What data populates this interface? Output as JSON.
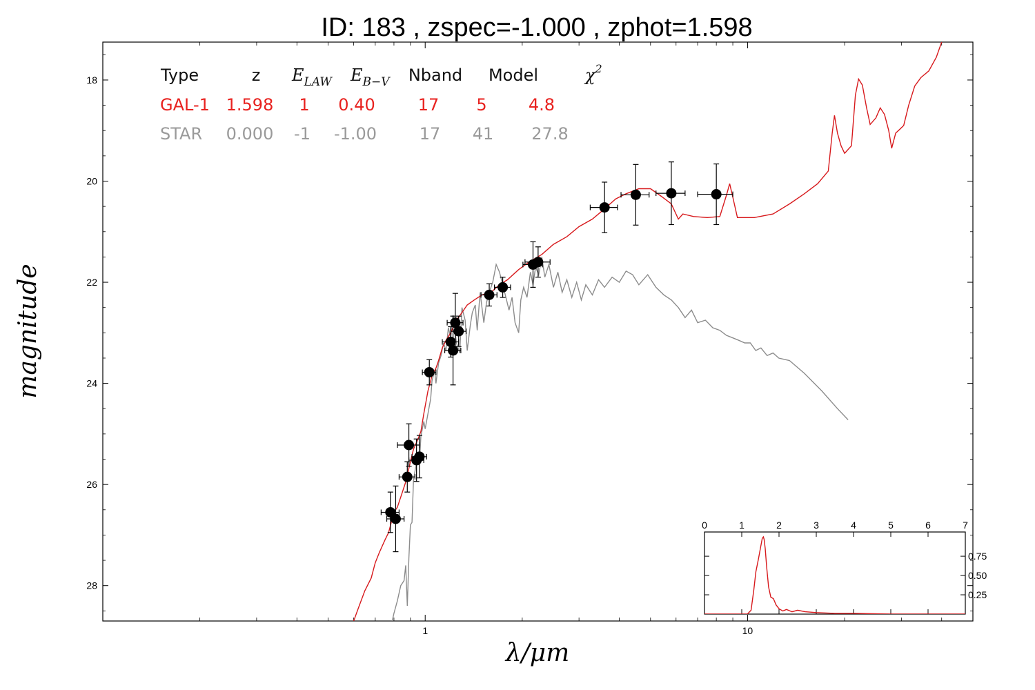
{
  "title": "ID:  183   , zspec=-1.000 , zphot=1.598",
  "colors": {
    "galaxy": "#d7191c",
    "star": "#8c8c8c",
    "points": "#000000",
    "table_galaxy": "#e8221f",
    "table_star": "#9a9a9a"
  },
  "table": {
    "headers": [
      "Type",
      "z",
      "E_LAW",
      "E_B-V",
      "Nband",
      "Model",
      "χ²"
    ],
    "header_display": {
      "type": "Type",
      "z": "z",
      "elaw_main": "E",
      "elaw_sub": "LAW",
      "ebv_main": "E",
      "ebv_sub": "B−V",
      "nband": "Nband",
      "model": "Model",
      "chi_main": "χ",
      "chi_sup": "2"
    },
    "rows": [
      {
        "type": "GAL-1",
        "z": "1.598",
        "elaw": "1",
        "ebv": "0.40",
        "nband": "17",
        "model": "5",
        "chi2": "4.8"
      },
      {
        "type": "STAR",
        "z": "0.000",
        "elaw": "-1",
        "ebv": "-1.00",
        "nband": "17",
        "model": "41",
        "chi2": "27.8"
      }
    ]
  },
  "chart_data": [
    {
      "type": "scatter",
      "xlabel": "λ/μm",
      "ylabel": "magnitude",
      "xscale": "log",
      "xlim": [
        0.1,
        50
      ],
      "ylim": [
        28.7,
        17.25
      ],
      "y_inverted": true,
      "xticks": [
        1,
        10
      ],
      "xtick_labels": [
        "1",
        "10"
      ],
      "yticks": [
        18,
        20,
        22,
        24,
        26,
        28
      ],
      "ytick_labels": [
        "18",
        "20",
        "22",
        "24",
        "26",
        "28"
      ],
      "observed": {
        "points": [
          {
            "x": 0.78,
            "y": 26.55,
            "xerr": 0.05,
            "yerr": 0.4
          },
          {
            "x": 0.81,
            "y": 26.68,
            "xerr": 0.05,
            "yerr": 0.65
          },
          {
            "x": 0.88,
            "y": 25.85,
            "xerr": 0.05,
            "yerr": 0.3
          },
          {
            "x": 0.89,
            "y": 25.22,
            "xerr": 0.07,
            "yerr": 0.42
          },
          {
            "x": 0.94,
            "y": 25.52,
            "xerr": 0.05,
            "yerr": 0.42
          },
          {
            "x": 0.96,
            "y": 25.45,
            "xerr": 0.05,
            "yerr": 0.42
          },
          {
            "x": 1.03,
            "y": 23.78,
            "xerr": 0.05,
            "yerr": 0.25
          },
          {
            "x": 1.2,
            "y": 23.18,
            "xerr": 0.07,
            "yerr": 0.3
          },
          {
            "x": 1.22,
            "y": 23.35,
            "xerr": 0.07,
            "yerr": 0.68
          },
          {
            "x": 1.24,
            "y": 22.8,
            "xerr": 0.07,
            "yerr": 0.58
          },
          {
            "x": 1.27,
            "y": 22.97,
            "xerr": 0.07,
            "yerr": 0.3
          },
          {
            "x": 1.58,
            "y": 22.25,
            "xerr": 0.09,
            "yerr": 0.22
          },
          {
            "x": 1.74,
            "y": 22.1,
            "xerr": 0.1,
            "yerr": 0.2
          },
          {
            "x": 2.16,
            "y": 21.65,
            "xerr": 0.15,
            "yerr": 0.45
          },
          {
            "x": 2.24,
            "y": 21.6,
            "xerr": 0.2,
            "yerr": 0.3
          },
          {
            "x": 3.6,
            "y": 20.52,
            "xerr": 0.35,
            "yerr": 0.5
          },
          {
            "x": 4.5,
            "y": 20.27,
            "xerr": 0.45,
            "yerr": 0.6
          },
          {
            "x": 5.8,
            "y": 20.24,
            "xerr": 0.6,
            "yerr": 0.62
          },
          {
            "x": 8.0,
            "y": 20.26,
            "xerr": 1.0,
            "yerr": 0.6
          }
        ]
      },
      "series": [
        {
          "name": "GAL-1",
          "color": "#d7191c",
          "points": [
            [
              0.6,
              28.7
            ],
            [
              0.62,
              28.45
            ],
            [
              0.65,
              28.1
            ],
            [
              0.68,
              27.85
            ],
            [
              0.7,
              27.55
            ],
            [
              0.72,
              27.35
            ],
            [
              0.75,
              27.1
            ],
            [
              0.77,
              26.95
            ],
            [
              0.8,
              26.55
            ],
            [
              0.82,
              26.45
            ],
            [
              0.85,
              26.15
            ],
            [
              0.87,
              25.95
            ],
            [
              0.9,
              25.55
            ],
            [
              0.92,
              25.3
            ],
            [
              0.95,
              25.1
            ],
            [
              0.97,
              24.95
            ],
            [
              0.99,
              24.6
            ],
            [
              1.02,
              24.15
            ],
            [
              1.05,
              23.85
            ],
            [
              1.08,
              23.7
            ],
            [
              1.1,
              23.55
            ],
            [
              1.13,
              23.3
            ],
            [
              1.16,
              23.15
            ],
            [
              1.2,
              23.0
            ],
            [
              1.25,
              22.75
            ],
            [
              1.3,
              22.6
            ],
            [
              1.35,
              22.45
            ],
            [
              1.42,
              22.35
            ],
            [
              1.5,
              22.25
            ],
            [
              1.6,
              22.2
            ],
            [
              1.7,
              22.05
            ],
            [
              1.8,
              21.95
            ],
            [
              1.95,
              21.75
            ],
            [
              2.1,
              21.6
            ],
            [
              2.3,
              21.45
            ],
            [
              2.5,
              21.25
            ],
            [
              2.75,
              21.1
            ],
            [
              3.0,
              20.9
            ],
            [
              3.3,
              20.75
            ],
            [
              3.6,
              20.55
            ],
            [
              3.9,
              20.35
            ],
            [
              4.2,
              20.25
            ],
            [
              4.6,
              20.15
            ],
            [
              5.0,
              20.15
            ],
            [
              5.4,
              20.3
            ],
            [
              5.8,
              20.45
            ],
            [
              6.1,
              20.75
            ],
            [
              6.3,
              20.65
            ],
            [
              6.8,
              20.7
            ],
            [
              7.5,
              20.72
            ],
            [
              8.2,
              20.7
            ],
            [
              8.6,
              20.28
            ],
            [
              8.8,
              20.05
            ],
            [
              9.0,
              20.32
            ],
            [
              9.3,
              20.72
            ],
            [
              10.5,
              20.72
            ],
            [
              12.0,
              20.65
            ],
            [
              13.5,
              20.45
            ],
            [
              15.0,
              20.25
            ],
            [
              16.5,
              20.05
            ],
            [
              17.8,
              19.8
            ],
            [
              18.3,
              19.05
            ],
            [
              18.6,
              18.7
            ],
            [
              19.0,
              19.05
            ],
            [
              19.5,
              19.3
            ],
            [
              20.0,
              19.45
            ],
            [
              21.0,
              19.3
            ],
            [
              21.6,
              18.3
            ],
            [
              22.1,
              17.98
            ],
            [
              22.7,
              18.1
            ],
            [
              23.4,
              18.55
            ],
            [
              24.0,
              18.88
            ],
            [
              25.0,
              18.75
            ],
            [
              25.8,
              18.55
            ],
            [
              26.6,
              18.68
            ],
            [
              27.4,
              19.0
            ],
            [
              28.0,
              19.35
            ],
            [
              28.8,
              19.05
            ],
            [
              29.6,
              18.98
            ],
            [
              30.5,
              18.9
            ],
            [
              31.6,
              18.5
            ],
            [
              33.0,
              18.12
            ],
            [
              34.5,
              17.95
            ],
            [
              36.5,
              17.82
            ],
            [
              38.5,
              17.55
            ],
            [
              40.0,
              17.25
            ]
          ]
        },
        {
          "name": "STAR",
          "color": "#8c8c8c",
          "points": [
            [
              0.79,
              28.7
            ],
            [
              0.8,
              28.55
            ],
            [
              0.82,
              28.3
            ],
            [
              0.84,
              28.0
            ],
            [
              0.86,
              27.9
            ],
            [
              0.87,
              27.6
            ],
            [
              0.88,
              28.4
            ],
            [
              0.89,
              27.45
            ],
            [
              0.9,
              26.8
            ],
            [
              0.91,
              26.75
            ],
            [
              0.92,
              25.9
            ],
            [
              0.935,
              25.65
            ],
            [
              0.95,
              25.4
            ],
            [
              0.96,
              25.55
            ],
            [
              0.97,
              25.05
            ],
            [
              0.99,
              24.75
            ],
            [
              1.0,
              24.9
            ],
            [
              1.02,
              24.6
            ],
            [
              1.04,
              24.3
            ],
            [
              1.05,
              23.95
            ],
            [
              1.07,
              23.75
            ],
            [
              1.08,
              24.0
            ],
            [
              1.1,
              23.6
            ],
            [
              1.12,
              23.45
            ],
            [
              1.14,
              23.2
            ],
            [
              1.16,
              23.35
            ],
            [
              1.18,
              22.9
            ],
            [
              1.2,
              23.1
            ],
            [
              1.22,
              22.65
            ],
            [
              1.25,
              23.2
            ],
            [
              1.28,
              23.4
            ],
            [
              1.3,
              22.5
            ],
            [
              1.33,
              22.75
            ],
            [
              1.35,
              23.35
            ],
            [
              1.38,
              22.85
            ],
            [
              1.4,
              22.6
            ],
            [
              1.43,
              22.45
            ],
            [
              1.45,
              22.95
            ],
            [
              1.48,
              22.2
            ],
            [
              1.52,
              22.8
            ],
            [
              1.55,
              22.4
            ],
            [
              1.58,
              22.2
            ],
            [
              1.62,
              22.0
            ],
            [
              1.66,
              21.65
            ],
            [
              1.7,
              21.8
            ],
            [
              1.74,
              22.05
            ],
            [
              1.78,
              22.3
            ],
            [
              1.82,
              22.55
            ],
            [
              1.86,
              22.3
            ],
            [
              1.9,
              22.8
            ],
            [
              1.95,
              23.0
            ],
            [
              1.98,
              22.35
            ],
            [
              2.02,
              22.1
            ],
            [
              2.07,
              22.3
            ],
            [
              2.12,
              21.8
            ],
            [
              2.16,
              22.05
            ],
            [
              2.2,
              21.7
            ],
            [
              2.25,
              21.85
            ],
            [
              2.3,
              21.5
            ],
            [
              2.35,
              21.9
            ],
            [
              2.42,
              21.65
            ],
            [
              2.5,
              22.1
            ],
            [
              2.58,
              21.8
            ],
            [
              2.66,
              22.2
            ],
            [
              2.75,
              21.95
            ],
            [
              2.85,
              22.3
            ],
            [
              2.95,
              22.0
            ],
            [
              3.05,
              22.35
            ],
            [
              3.15,
              22.05
            ],
            [
              3.3,
              22.25
            ],
            [
              3.45,
              21.95
            ],
            [
              3.6,
              22.1
            ],
            [
              3.8,
              21.9
            ],
            [
              4.0,
              22.0
            ],
            [
              4.2,
              21.78
            ],
            [
              4.4,
              21.85
            ],
            [
              4.6,
              22.05
            ],
            [
              4.9,
              21.85
            ],
            [
              5.2,
              22.1
            ],
            [
              5.5,
              22.25
            ],
            [
              5.8,
              22.35
            ],
            [
              6.1,
              22.5
            ],
            [
              6.4,
              22.7
            ],
            [
              6.7,
              22.55
            ],
            [
              7.0,
              22.8
            ],
            [
              7.4,
              22.75
            ],
            [
              7.8,
              22.9
            ],
            [
              8.2,
              22.95
            ],
            [
              8.6,
              23.05
            ],
            [
              9.0,
              23.1
            ],
            [
              9.4,
              23.15
            ],
            [
              9.8,
              23.2
            ],
            [
              10.2,
              23.2
            ],
            [
              10.6,
              23.35
            ],
            [
              11.0,
              23.3
            ],
            [
              11.5,
              23.45
            ],
            [
              12.0,
              23.4
            ],
            [
              12.5,
              23.5
            ],
            [
              13.5,
              23.55
            ],
            [
              15.0,
              23.8
            ],
            [
              17.0,
              24.15
            ],
            [
              19.0,
              24.5
            ],
            [
              20.5,
              24.72
            ]
          ]
        }
      ]
    },
    {
      "type": "line",
      "inset": true,
      "location": "bottom-right",
      "xlim": [
        0,
        7
      ],
      "ylim": [
        0,
        1.0
      ],
      "xticks": [
        0,
        1,
        2,
        3,
        4,
        5,
        6,
        7
      ],
      "xtick_labels": [
        "0",
        "1",
        "2",
        "3",
        "4",
        "5",
        "6",
        "7"
      ],
      "yticks": [
        0.25,
        0.5,
        0.75
      ],
      "ytick_labels": [
        "0.25",
        "0.50",
        "0.75"
      ],
      "color": "#d7191c",
      "x": [
        0,
        1.15,
        1.25,
        1.32,
        1.38,
        1.45,
        1.5,
        1.55,
        1.58,
        1.6,
        1.63,
        1.67,
        1.72,
        1.78,
        1.85,
        1.92,
        2.0,
        2.1,
        2.2,
        2.35,
        2.5,
        2.7,
        3.0,
        3.5,
        4.0,
        5.0,
        6.0,
        7.0
      ],
      "y": [
        0,
        0.0,
        0.05,
        0.3,
        0.55,
        0.72,
        0.85,
        0.98,
        1.0,
        0.97,
        0.85,
        0.6,
        0.35,
        0.22,
        0.2,
        0.12,
        0.07,
        0.04,
        0.06,
        0.03,
        0.05,
        0.03,
        0.02,
        0.01,
        0.01,
        0.0,
        0.0,
        0.0
      ]
    }
  ]
}
